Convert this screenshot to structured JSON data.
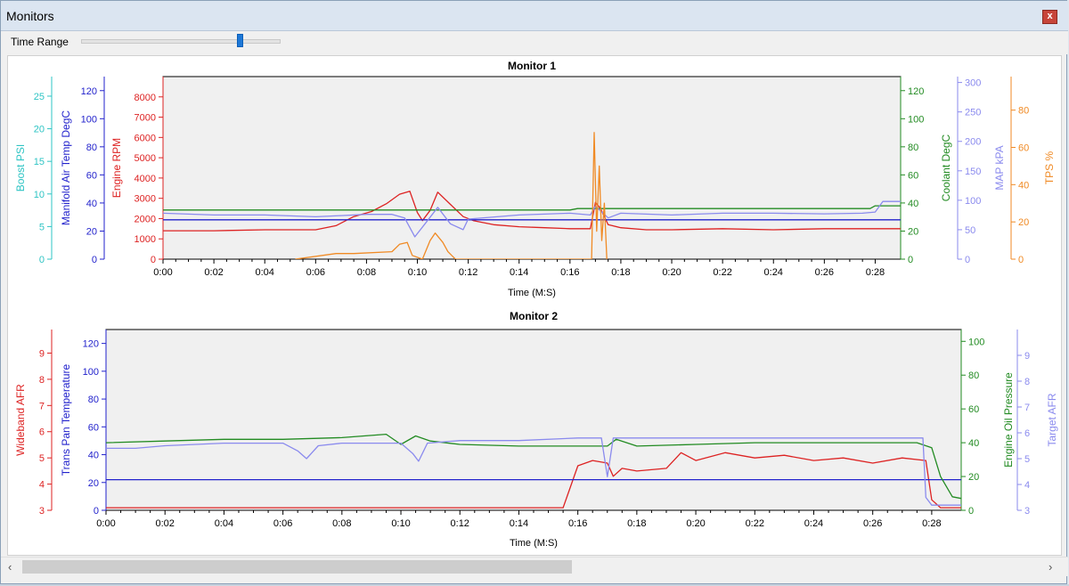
{
  "window": {
    "title": "Monitors",
    "close_label": "x"
  },
  "toolbar": {
    "time_range_label": "Time Range",
    "slider_value_fraction": 0.8
  },
  "chart_data": [
    {
      "type": "line",
      "title": "Monitor 1",
      "xlabel": "Time (M:S)",
      "xlim": [
        0,
        29
      ],
      "x_ticks": [
        "0:00",
        "0:02",
        "0:04",
        "0:06",
        "0:08",
        "0:10",
        "0:12",
        "0:14",
        "0:16",
        "0:18",
        "0:20",
        "0:22",
        "0:24",
        "0:26",
        "0:28"
      ],
      "grid": false,
      "axes": [
        {
          "id": "boost",
          "label": "Boost PSI",
          "side": "left",
          "color": "#2ec4c4",
          "range": [
            0,
            28
          ],
          "ticks": [
            0,
            5,
            10,
            15,
            20,
            25
          ]
        },
        {
          "id": "iat",
          "label": "Manifold Air Temp DegC",
          "side": "left",
          "color": "#2222cc",
          "range": [
            0,
            130
          ],
          "ticks": [
            0,
            20,
            40,
            60,
            80,
            100,
            120
          ]
        },
        {
          "id": "rpm",
          "label": "Engine RPM",
          "side": "left",
          "color": "#dd2222",
          "range": [
            0,
            9000
          ],
          "ticks": [
            0,
            1000,
            2000,
            3000,
            4000,
            5000,
            6000,
            7000,
            8000
          ]
        },
        {
          "id": "coolant",
          "label": "Coolant DegC",
          "side": "right",
          "color": "#228b22",
          "range": [
            0,
            130
          ],
          "ticks": [
            0,
            20,
            40,
            60,
            80,
            100,
            120
          ]
        },
        {
          "id": "map",
          "label": "MAP kPA",
          "side": "right",
          "color": "#8a8aee",
          "range": [
            0,
            310
          ],
          "ticks": [
            0,
            50,
            100,
            150,
            200,
            250,
            300
          ]
        },
        {
          "id": "tps",
          "label": "TPS %",
          "side": "right",
          "color": "#f08a24",
          "range": [
            0,
            98
          ],
          "ticks": [
            0,
            20,
            40,
            60,
            80
          ]
        }
      ],
      "series": [
        {
          "name": "Engine RPM",
          "axis": "rpm",
          "color": "#dd2222",
          "x": [
            0,
            2,
            4,
            6,
            6.8,
            7.5,
            8.2,
            8.8,
            9.3,
            9.7,
            10.0,
            10.2,
            10.5,
            10.8,
            11.3,
            11.8,
            12.2,
            13,
            14,
            15,
            16,
            16.8,
            17.0,
            17.2,
            17.5,
            18,
            19,
            20,
            22,
            24,
            26,
            28,
            29
          ],
          "y": [
            1400,
            1400,
            1450,
            1450,
            1650,
            2100,
            2350,
            2750,
            3200,
            3350,
            2300,
            1900,
            2400,
            3300,
            2700,
            2100,
            1900,
            1700,
            1600,
            1550,
            1500,
            1500,
            2800,
            2500,
            1700,
            1550,
            1450,
            1450,
            1500,
            1450,
            1500,
            1500,
            1500
          ]
        },
        {
          "name": "Manifold Air Temp DegC",
          "axis": "iat",
          "color": "#2222cc",
          "x": [
            0,
            29
          ],
          "y": [
            28,
            28
          ]
        },
        {
          "name": "Coolant DegC",
          "axis": "coolant",
          "color": "#228b22",
          "x": [
            0,
            16,
            16.3,
            27.8,
            28,
            29
          ],
          "y": [
            35,
            35,
            36,
            36,
            38,
            38
          ]
        },
        {
          "name": "MAP kPA",
          "axis": "map",
          "color": "#8a8aee",
          "x": [
            0,
            2,
            4,
            6,
            7,
            8,
            9,
            9.5,
            9.9,
            10.3,
            10.8,
            11.3,
            11.8,
            12,
            14,
            16,
            16.8,
            17,
            17.5,
            18,
            20,
            22,
            24,
            26,
            27.5,
            28,
            28.3,
            29
          ],
          "y": [
            78,
            75,
            75,
            72,
            74,
            76,
            76,
            70,
            38,
            60,
            88,
            60,
            50,
            68,
            75,
            78,
            75,
            90,
            70,
            78,
            75,
            78,
            78,
            77,
            78,
            80,
            98,
            98
          ]
        },
        {
          "name": "TPS %",
          "axis": "tps",
          "color": "#f08a24",
          "x": [
            5.2,
            6.8,
            7.5,
            9,
            9.3,
            9.6,
            9.8,
            10.2,
            10.5,
            10.7,
            11.0,
            11.2,
            11.5,
            16.85,
            16.95,
            17.05,
            17.15,
            17.25,
            17.35,
            17.45
          ],
          "y": [
            0,
            3,
            3,
            4,
            8,
            9,
            2,
            0,
            10,
            14,
            9,
            4,
            0,
            0,
            68,
            15,
            50,
            10,
            30,
            0
          ]
        }
      ]
    },
    {
      "type": "line",
      "title": "Monitor 2",
      "xlabel": "Time (M:S)",
      "xlim": [
        0,
        29
      ],
      "x_ticks": [
        "0:00",
        "0:02",
        "0:04",
        "0:06",
        "0:08",
        "0:10",
        "0:12",
        "0:14",
        "0:16",
        "0:18",
        "0:20",
        "0:22",
        "0:24",
        "0:26",
        "0:28"
      ],
      "grid": false,
      "axes": [
        {
          "id": "afr",
          "label": "Wideband AFR",
          "side": "left",
          "color": "#dd2222",
          "range": [
            3,
            9.9
          ],
          "ticks": [
            3,
            4,
            5,
            6,
            7,
            8,
            9
          ]
        },
        {
          "id": "trans",
          "label": "Trans Pan Temperature",
          "side": "left",
          "color": "#2222cc",
          "range": [
            0,
            130
          ],
          "ticks": [
            0,
            20,
            40,
            60,
            80,
            100,
            120
          ]
        },
        {
          "id": "oil",
          "label": "Engine Oil Pressure",
          "side": "right",
          "color": "#228b22",
          "range": [
            0,
            107
          ],
          "ticks": [
            0,
            20,
            40,
            60,
            80,
            100
          ]
        },
        {
          "id": "tafr",
          "label": "Target AFR",
          "side": "right",
          "color": "#8a8aee",
          "range": [
            3,
            10
          ],
          "ticks": [
            3,
            4,
            5,
            6,
            7,
            8,
            9
          ]
        }
      ],
      "series": [
        {
          "name": "Wideband AFR",
          "axis": "afr",
          "color": "#dd2222",
          "x": [
            0,
            15.5,
            16,
            16.5,
            17,
            17.2,
            17.5,
            18,
            19,
            19.5,
            20,
            21,
            22,
            23,
            24,
            25,
            26,
            27,
            27.8,
            28,
            28.3,
            29
          ],
          "y": [
            3.1,
            3.1,
            4.7,
            4.9,
            4.8,
            4.3,
            4.6,
            4.5,
            4.6,
            5.2,
            4.9,
            5.2,
            5.0,
            5.1,
            4.9,
            5.0,
            4.8,
            5.0,
            4.9,
            3.4,
            3.1,
            3.1
          ]
        },
        {
          "name": "Trans Pan Temperature",
          "axis": "trans",
          "color": "#2222cc",
          "x": [
            0,
            28,
            28.1,
            29
          ],
          "y": [
            22,
            22,
            22,
            22
          ]
        },
        {
          "name": "Engine Oil Pressure",
          "axis": "oil",
          "color": "#228b22",
          "x": [
            0,
            2,
            4,
            6,
            8,
            9.5,
            10,
            10.5,
            11,
            12,
            14,
            16,
            17,
            17.3,
            18,
            20,
            22,
            24,
            26,
            27.5,
            28,
            28.3,
            28.7,
            29
          ],
          "y": [
            40,
            41,
            42,
            42,
            43,
            45,
            39,
            44,
            41,
            39,
            38,
            38,
            38,
            42,
            38,
            39,
            40,
            40,
            40,
            40,
            37,
            20,
            8,
            7
          ]
        },
        {
          "name": "Target AFR",
          "axis": "tafr",
          "color": "#8a8aee",
          "x": [
            0,
            1,
            2,
            4,
            6,
            6.5,
            6.8,
            7.2,
            8,
            10,
            10.4,
            10.6,
            10.9,
            12,
            14,
            16,
            16.8,
            17.0,
            17.2,
            17.5,
            20,
            24,
            27,
            27.7,
            27.8,
            28,
            29
          ],
          "y": [
            5.4,
            5.4,
            5.5,
            5.6,
            5.6,
            5.3,
            5.0,
            5.5,
            5.6,
            5.6,
            5.2,
            4.9,
            5.6,
            5.7,
            5.7,
            5.8,
            5.8,
            4.3,
            5.8,
            5.8,
            5.8,
            5.8,
            5.8,
            5.8,
            3.5,
            3.2,
            3.2
          ]
        }
      ]
    }
  ]
}
